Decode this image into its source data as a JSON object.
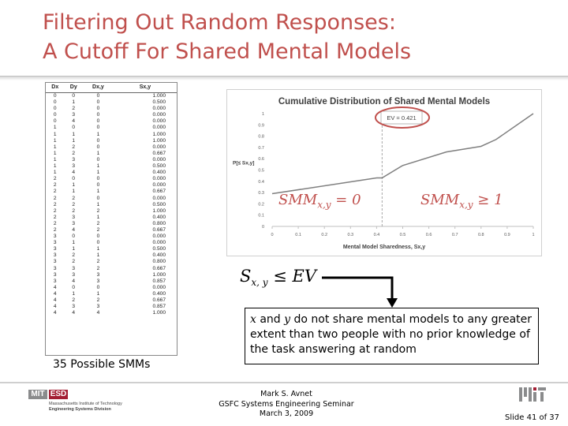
{
  "slide": {
    "title_line1": "Filtering Out Random Responses:",
    "title_line2": "A Cutoff For Shared Mental Models",
    "caption": "35 Possible SMMs",
    "slide_number": "Slide 41 of 37"
  },
  "table": {
    "headers": [
      "Dx",
      "Dy",
      "Dx,y",
      "Sx,y"
    ],
    "rows": [
      [
        "0",
        "0",
        "0",
        "1.000"
      ],
      [
        "0",
        "1",
        "0",
        "0.500"
      ],
      [
        "0",
        "2",
        "0",
        "0.000"
      ],
      [
        "0",
        "3",
        "0",
        "0.000"
      ],
      [
        "0",
        "4",
        "0",
        "0.000"
      ],
      [
        "1",
        "0",
        "0",
        "0.000"
      ],
      [
        "1",
        "1",
        "1",
        "1.000"
      ],
      [
        "1",
        "1",
        "0",
        "1.000"
      ],
      [
        "1",
        "2",
        "0",
        "0.000"
      ],
      [
        "1",
        "2",
        "1",
        "0.667"
      ],
      [
        "1",
        "3",
        "0",
        "0.000"
      ],
      [
        "1",
        "3",
        "1",
        "0.500"
      ],
      [
        "1",
        "4",
        "1",
        "0.400"
      ],
      [
        "2",
        "0",
        "0",
        "0.000"
      ],
      [
        "2",
        "1",
        "0",
        "0.000"
      ],
      [
        "2",
        "1",
        "1",
        "0.667"
      ],
      [
        "2",
        "2",
        "0",
        "0.000"
      ],
      [
        "2",
        "2",
        "1",
        "0.500"
      ],
      [
        "2",
        "2",
        "2",
        "1.000"
      ],
      [
        "2",
        "3",
        "1",
        "0.400"
      ],
      [
        "2",
        "3",
        "2",
        "0.800"
      ],
      [
        "2",
        "4",
        "2",
        "0.667"
      ],
      [
        "3",
        "0",
        "0",
        "0.000"
      ],
      [
        "3",
        "1",
        "0",
        "0.000"
      ],
      [
        "3",
        "1",
        "1",
        "0.500"
      ],
      [
        "3",
        "2",
        "1",
        "0.400"
      ],
      [
        "3",
        "2",
        "2",
        "0.800"
      ],
      [
        "3",
        "3",
        "2",
        "0.667"
      ],
      [
        "3",
        "3",
        "3",
        "1.000"
      ],
      [
        "3",
        "4",
        "3",
        "0.857"
      ],
      [
        "4",
        "0",
        "0",
        "0.000"
      ],
      [
        "4",
        "1",
        "1",
        "0.400"
      ],
      [
        "4",
        "2",
        "2",
        "0.667"
      ],
      [
        "4",
        "3",
        "3",
        "0.857"
      ],
      [
        "4",
        "4",
        "4",
        "1.000"
      ]
    ]
  },
  "equations": {
    "left_main": "SMM",
    "left_sub": "x,y",
    "left_rest": " = 0",
    "right_main": "SMM",
    "right_sub": "x,y",
    "right_rest": " ≥ 1"
  },
  "formula": {
    "main": "S",
    "sub": "x, y",
    "rest": " ≤ EV"
  },
  "callout": {
    "x": "x",
    "and": " and ",
    "y": "y",
    "text": " do not share mental models to any greater extent than two people with no prior knowledge of the task answering at random"
  },
  "footer": {
    "line1": "Mark S. Avnet",
    "line2": "GSFC Systems Engineering Seminar",
    "line3": "March 3, 2009"
  },
  "logos": {
    "mit": "MIT",
    "esd": "ESD",
    "inst_line1": "Massachusetts Institute of Technology",
    "inst_line2": "Engineering Systems Division"
  },
  "colors": {
    "title": "#c0504d",
    "line": "#7f7f7f",
    "ev_oval": "#c0504d",
    "esd_red": "#a31f34",
    "mit_gray": "#8a8b8c"
  },
  "chart_data": {
    "type": "line",
    "title": "Cumulative Distribution of Shared Mental Models",
    "xlabel": "Mental Model Sharedness, Sx,y",
    "ylabel": "P[≤ Sx,y]",
    "xlim": [
      0,
      1
    ],
    "ylim": [
      0,
      1
    ],
    "x_ticks": [
      "0",
      "0.1",
      "0.2",
      "0.3",
      "0.4",
      "0.5",
      "0.6",
      "0.7",
      "0.8",
      "0.9",
      "1"
    ],
    "y_ticks": [
      "0",
      "0.1",
      "0.2",
      "0.3",
      "0.4",
      "0.5",
      "0.6",
      "0.7",
      "0.8",
      "0.9",
      "1"
    ],
    "series": [
      {
        "x": [
          0,
          0.4,
          0.421,
          0.5,
          0.667,
          0.8,
          0.857,
          1.0
        ],
        "y": [
          0.29,
          0.43,
          0.43,
          0.54,
          0.66,
          0.71,
          0.77,
          1.0
        ]
      }
    ],
    "annotation": "EV = 0.421",
    "ev": 0.421
  }
}
